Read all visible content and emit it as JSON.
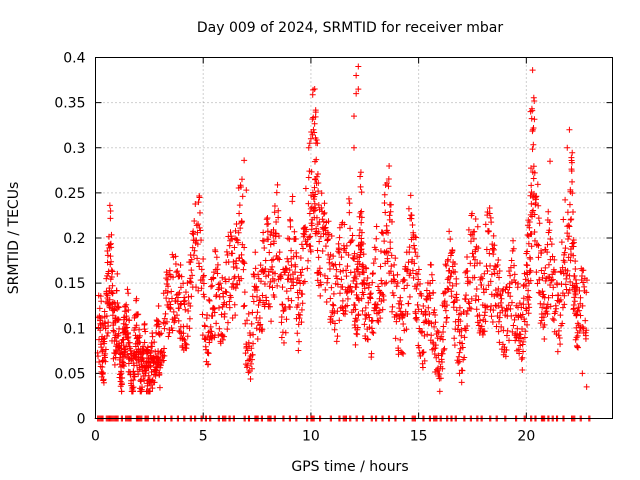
{
  "chart_data": {
    "type": "scatter",
    "title": "Day 009 of 2024, SRMTID for receiver mbar",
    "xlabel": "GPS time / hours",
    "ylabel": "SRMTID / TECUs",
    "xlim": [
      0,
      24
    ],
    "ylim": [
      0,
      0.4
    ],
    "xticks": [
      0,
      5,
      10,
      15,
      20
    ],
    "xtick_labels": [
      "0",
      "5",
      "10",
      "15",
      "20"
    ],
    "yticks": [
      0,
      0.05,
      0.1,
      0.15,
      0.2,
      0.25,
      0.3,
      0.35,
      0.4
    ],
    "ytick_labels": [
      "0",
      "0.05",
      "0.1",
      "0.15",
      "0.2",
      "0.25",
      "0.3",
      "0.35",
      "0.4"
    ],
    "grid": true,
    "marker": "plus",
    "color": "#ff0000",
    "series": [
      {
        "name": "SRMTID",
        "x": [
          0.0,
          0.2,
          0.3,
          0.4,
          0.5,
          0.6,
          0.7,
          0.8,
          0.9,
          1.0,
          1.1,
          1.2,
          1.3,
          1.4,
          1.5,
          1.6,
          1.7,
          1.8,
          1.9,
          2.0,
          2.1,
          2.2,
          2.3,
          2.4,
          2.5,
          2.6,
          2.7,
          2.8,
          2.9,
          3.0,
          3.2,
          3.4,
          3.6,
          3.8,
          4.0,
          4.2,
          4.4,
          4.6,
          4.8,
          5.0,
          5.2,
          5.4,
          5.6,
          5.8,
          6.0,
          6.2,
          6.4,
          6.6,
          6.8,
          7.0,
          7.2,
          7.4,
          7.6,
          7.8,
          8.0,
          8.2,
          8.4,
          8.6,
          8.8,
          9.0,
          9.2,
          9.4,
          9.6,
          9.8,
          10.0,
          10.1,
          10.2,
          10.3,
          10.4,
          10.6,
          10.8,
          11.0,
          11.2,
          11.4,
          11.6,
          11.8,
          12.0,
          12.1,
          12.2,
          12.3,
          12.4,
          12.6,
          12.8,
          13.0,
          13.2,
          13.4,
          13.6,
          13.8,
          14.0,
          14.2,
          14.4,
          14.6,
          14.8,
          15.0,
          15.2,
          15.4,
          15.6,
          15.8,
          16.0,
          16.2,
          16.4,
          16.6,
          16.8,
          17.0,
          17.2,
          17.4,
          17.6,
          17.8,
          18.0,
          18.2,
          18.4,
          18.6,
          18.8,
          19.0,
          19.2,
          19.4,
          19.6,
          19.8,
          20.0,
          20.1,
          20.2,
          20.3,
          20.4,
          20.6,
          20.8,
          21.0,
          21.2,
          21.4,
          21.6,
          21.8,
          22.0,
          22.1,
          22.2,
          22.3,
          22.4,
          22.6,
          22.8
        ],
        "y": [
          0.09,
          0.1,
          0.08,
          0.07,
          0.12,
          0.16,
          0.19,
          0.1,
          0.09,
          0.13,
          0.07,
          0.05,
          0.08,
          0.1,
          0.11,
          0.06,
          0.04,
          0.08,
          0.1,
          0.07,
          0.05,
          0.06,
          0.08,
          0.05,
          0.04,
          0.06,
          0.07,
          0.08,
          0.09,
          0.06,
          0.11,
          0.13,
          0.15,
          0.14,
          0.12,
          0.11,
          0.14,
          0.18,
          0.2,
          0.13,
          0.09,
          0.12,
          0.15,
          0.13,
          0.11,
          0.17,
          0.14,
          0.19,
          0.21,
          0.09,
          0.07,
          0.14,
          0.12,
          0.16,
          0.18,
          0.15,
          0.22,
          0.14,
          0.12,
          0.17,
          0.2,
          0.11,
          0.16,
          0.23,
          0.25,
          0.3,
          0.28,
          0.22,
          0.19,
          0.2,
          0.17,
          0.15,
          0.13,
          0.18,
          0.16,
          0.19,
          0.14,
          0.12,
          0.16,
          0.22,
          0.15,
          0.13,
          0.11,
          0.17,
          0.14,
          0.19,
          0.23,
          0.15,
          0.12,
          0.1,
          0.13,
          0.2,
          0.17,
          0.12,
          0.09,
          0.11,
          0.13,
          0.07,
          0.06,
          0.12,
          0.16,
          0.14,
          0.1,
          0.08,
          0.13,
          0.17,
          0.19,
          0.14,
          0.11,
          0.2,
          0.16,
          0.14,
          0.12,
          0.1,
          0.13,
          0.15,
          0.11,
          0.09,
          0.14,
          0.17,
          0.2,
          0.32,
          0.26,
          0.17,
          0.12,
          0.18,
          0.15,
          0.11,
          0.13,
          0.21,
          0.17,
          0.24,
          0.15,
          0.12,
          0.1,
          0.13,
          0.11
        ],
        "highlights": [
          {
            "x": 6.9,
            "y": 0.286
          },
          {
            "x": 7.0,
            "y": 0.253
          },
          {
            "x": 9.9,
            "y": 0.3
          },
          {
            "x": 10.0,
            "y": 0.31
          },
          {
            "x": 10.3,
            "y": 0.305
          },
          {
            "x": 12.0,
            "y": 0.335
          },
          {
            "x": 12.1,
            "y": 0.36
          },
          {
            "x": 12.2,
            "y": 0.39
          },
          {
            "x": 12.1,
            "y": 0.38
          },
          {
            "x": 12.0,
            "y": 0.3
          },
          {
            "x": 12.2,
            "y": 0.365
          },
          {
            "x": 20.2,
            "y": 0.34
          },
          {
            "x": 20.3,
            "y": 0.32
          },
          {
            "x": 21.1,
            "y": 0.285
          },
          {
            "x": 22.0,
            "y": 0.32
          },
          {
            "x": 21.9,
            "y": 0.3
          },
          {
            "x": 22.6,
            "y": 0.05
          },
          {
            "x": 22.8,
            "y": 0.035
          },
          {
            "x": 17.0,
            "y": 0.04
          },
          {
            "x": 16.9,
            "y": 0.05
          }
        ],
        "zero_points": [
          0.0,
          0.1,
          0.2,
          0.3,
          0.5,
          0.6,
          0.7,
          0.8,
          0.9,
          1.0,
          1.2,
          1.4,
          1.5,
          1.6,
          1.9,
          2.0,
          2.1,
          2.3,
          2.4,
          2.7,
          2.9,
          3.2,
          3.5,
          3.8,
          4.1,
          4.4,
          4.6,
          4.9,
          5.1,
          5.3,
          5.7,
          5.9,
          6.0,
          6.2,
          6.4,
          6.9,
          7.1,
          7.4,
          7.5,
          7.7,
          8.0,
          8.1,
          8.3,
          8.7,
          9.0,
          9.3,
          9.8,
          10.0,
          10.1,
          10.4,
          10.9,
          11.3,
          11.5,
          11.6,
          11.8,
          12.1,
          12.4,
          12.8,
          13.0,
          13.3,
          13.6,
          13.9,
          14.3,
          14.7,
          14.8,
          15.2,
          15.5,
          15.7,
          15.8,
          16.0,
          16.3,
          16.5,
          16.7,
          17.1,
          17.4,
          17.7,
          17.9,
          18.3,
          18.6,
          19.0,
          19.5,
          19.9,
          20.2,
          20.4,
          20.7,
          20.8,
          21.0,
          21.2,
          21.4,
          21.7,
          22.1,
          22.2,
          22.5,
          22.9
        ]
      }
    ]
  }
}
